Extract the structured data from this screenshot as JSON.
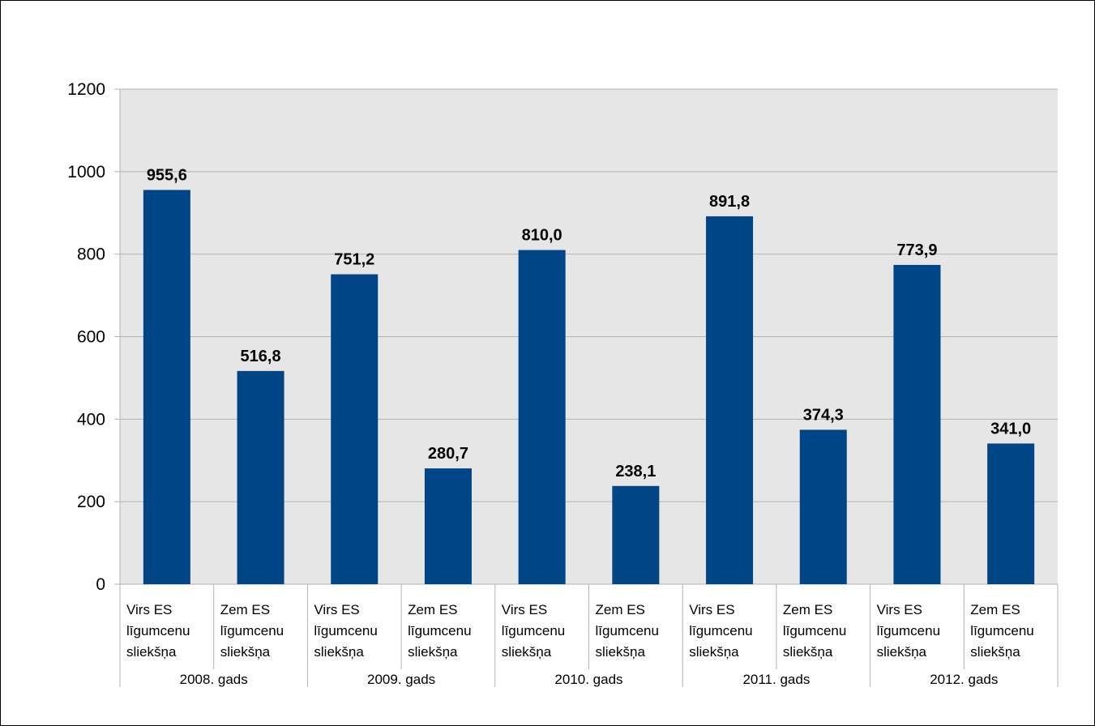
{
  "chart_data": {
    "type": "bar",
    "groups": [
      "2008. gads",
      "2009. gads",
      "2010. gads",
      "2011. gads",
      "2012. gads"
    ],
    "categories": [
      {
        "group": 0,
        "lines": [
          "Virs ES",
          "līgumcenu",
          "sliekšņa"
        ]
      },
      {
        "group": 0,
        "lines": [
          "Zem ES",
          "līgumcenu",
          "sliekšņa"
        ]
      },
      {
        "group": 1,
        "lines": [
          "Virs ES",
          "līgumcenu",
          "sliekšņa"
        ]
      },
      {
        "group": 1,
        "lines": [
          "Zem ES",
          "līgumcenu",
          "sliekšņa"
        ]
      },
      {
        "group": 2,
        "lines": [
          "Virs ES",
          "līgumcenu",
          "sliekšņa"
        ]
      },
      {
        "group": 2,
        "lines": [
          "Zem ES",
          "līgumcenu",
          "sliekšņa"
        ]
      },
      {
        "group": 3,
        "lines": [
          "Virs ES",
          "līgumcenu",
          "sliekšņa"
        ]
      },
      {
        "group": 3,
        "lines": [
          "Zem ES",
          "līgumcenu",
          "sliekšņa"
        ]
      },
      {
        "group": 4,
        "lines": [
          "Virs ES",
          "līgumcenu",
          "sliekšņa"
        ]
      },
      {
        "group": 4,
        "lines": [
          "Zem ES",
          "līgumcenu",
          "sliekšņa"
        ]
      }
    ],
    "values": [
      955.6,
      516.8,
      751.2,
      280.7,
      810.0,
      238.1,
      891.8,
      374.3,
      773.9,
      341.0
    ],
    "value_labels": [
      "955,6",
      "516,8",
      "751,2",
      "280,7",
      "810,0",
      "238,1",
      "891,8",
      "374,3",
      "773,9",
      "341,0"
    ],
    "ylim": [
      0,
      1200
    ],
    "yticks": [
      0,
      200,
      400,
      600,
      800,
      1000,
      1200
    ],
    "grid": true,
    "legend": "none",
    "colors": {
      "bar": "#004586",
      "plot_background": "#e6e6e6",
      "grid": "#b3b3b3",
      "axis": "#b3b3b3"
    }
  }
}
